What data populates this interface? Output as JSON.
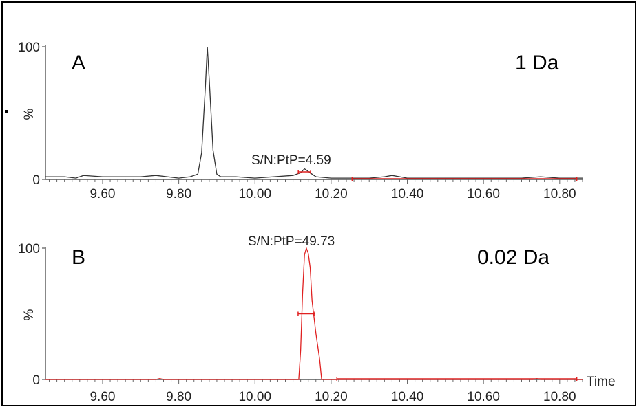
{
  "chart_data": [
    {
      "type": "line",
      "panel": "A",
      "annotation": "1 Da",
      "ylabel": "%",
      "xlabel": "",
      "xlim": [
        9.45,
        10.86
      ],
      "ylim": [
        0,
        100
      ],
      "x_ticks": [
        9.6,
        9.8,
        10.0,
        10.2,
        10.4,
        10.6,
        10.8
      ],
      "x_tick_labels": [
        "9.60",
        "9.80",
        "10.00",
        "10.20",
        "10.40",
        "10.60",
        "10.80"
      ],
      "y_ticks": [
        0,
        100
      ],
      "y_tick_labels": [
        "0",
        "100"
      ],
      "color": "#333333",
      "sn_label": "S/N:PtP=4.59",
      "sn_peak_x": 10.13,
      "series": [
        {
          "x": [
            9.45,
            9.5,
            9.53,
            9.55,
            9.6,
            9.65,
            9.7,
            9.74,
            9.77,
            9.8,
            9.83,
            9.85,
            9.86,
            9.87,
            9.875,
            9.88,
            9.89,
            9.9,
            9.91,
            9.93,
            9.95,
            10.0,
            10.05,
            10.1,
            10.12,
            10.13,
            10.14,
            10.15,
            10.16,
            10.2,
            10.25,
            10.3,
            10.34,
            10.36,
            10.38,
            10.4,
            10.5,
            10.6,
            10.7,
            10.75,
            10.8,
            10.86
          ],
          "y": [
            2,
            2,
            1,
            3,
            2,
            2,
            2,
            3,
            2,
            1,
            2,
            4,
            20,
            70,
            100,
            75,
            22,
            4,
            2,
            2,
            2,
            1,
            2,
            3,
            5,
            8,
            6,
            4,
            2,
            1,
            1,
            1,
            2,
            3,
            2,
            1,
            1,
            1,
            1,
            2,
            1,
            1
          ]
        }
      ]
    },
    {
      "type": "line",
      "panel": "B",
      "annotation": "0.02 Da",
      "ylabel": "%",
      "xlabel": "Time",
      "xlim": [
        9.45,
        10.86
      ],
      "ylim": [
        0,
        100
      ],
      "x_ticks": [
        9.6,
        9.8,
        10.0,
        10.2,
        10.4,
        10.6,
        10.8
      ],
      "x_tick_labels": [
        "9.60",
        "9.80",
        "10.00",
        "10.20",
        "10.40",
        "10.60",
        "10.80"
      ],
      "y_ticks": [
        0,
        100
      ],
      "y_tick_labels": [
        "0",
        "100"
      ],
      "color": "#e02020",
      "sn_label": "S/N:PtP=49.73",
      "sn_peak_x": 10.135,
      "series": [
        {
          "x": [
            9.45,
            9.6,
            9.74,
            9.75,
            9.76,
            10.0,
            10.1,
            10.115,
            10.12,
            10.125,
            10.13,
            10.135,
            10.14,
            10.145,
            10.15,
            10.16,
            10.17,
            10.175,
            10.2,
            10.4,
            10.6,
            10.73,
            10.74,
            10.75,
            10.86
          ],
          "y": [
            0,
            0,
            0,
            0.7,
            0,
            0,
            0,
            0,
            22,
            65,
            95,
            100,
            96,
            85,
            60,
            35,
            15,
            0,
            0,
            0,
            0,
            0,
            0.7,
            0,
            0
          ]
        }
      ]
    }
  ]
}
